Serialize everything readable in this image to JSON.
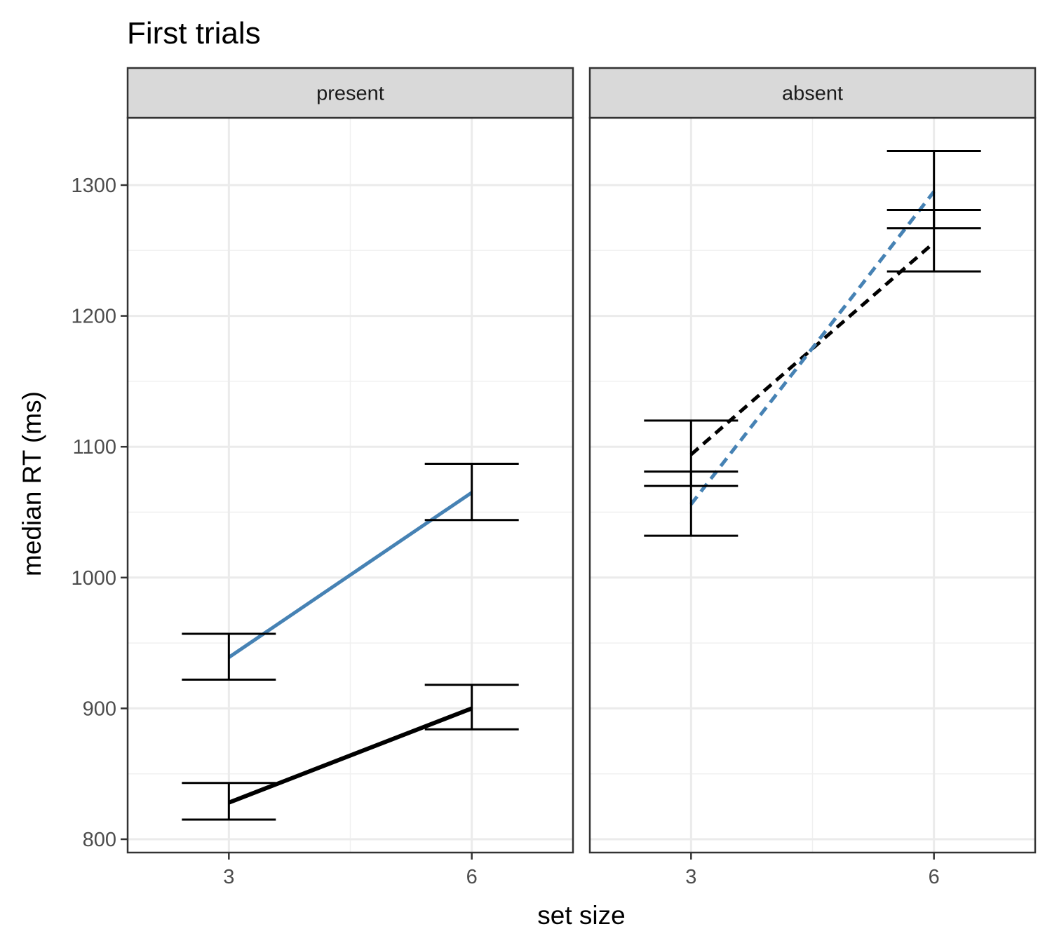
{
  "chart_data": {
    "type": "line",
    "title": "First trials",
    "xlabel": "set size",
    "ylabel": "median RT (ms)",
    "x": [
      3,
      6
    ],
    "x_ticks": [
      "3",
      "6"
    ],
    "y_ticks": [
      "800",
      "900",
      "1000",
      "1100",
      "1200",
      "1300"
    ],
    "ylim": [
      790,
      1350
    ],
    "xlim": [
      1.75,
      7.25
    ],
    "grid": true,
    "legend": "none",
    "panels": [
      {
        "label": "present",
        "series": [
          {
            "color": "#4682B4",
            "linestyle": "solid",
            "values": [
              939,
              1065
            ],
            "lower": [
              922,
              1044
            ],
            "upper": [
              957,
              1087
            ]
          },
          {
            "color": "#000000",
            "linestyle": "solid",
            "values": [
              828,
              900
            ],
            "lower": [
              815,
              884
            ],
            "upper": [
              843,
              918
            ]
          }
        ]
      },
      {
        "label": "absent",
        "series": [
          {
            "color": "#000000",
            "linestyle": "dashed",
            "values": [
              1094,
              1256
            ],
            "lower": [
              1070,
              1234
            ],
            "upper": [
              1120,
              1281
            ]
          },
          {
            "color": "#4682B4",
            "linestyle": "dashed",
            "values": [
              1056,
              1295
            ],
            "lower": [
              1032,
              1267
            ],
            "upper": [
              1081,
              1326
            ]
          }
        ]
      }
    ]
  }
}
